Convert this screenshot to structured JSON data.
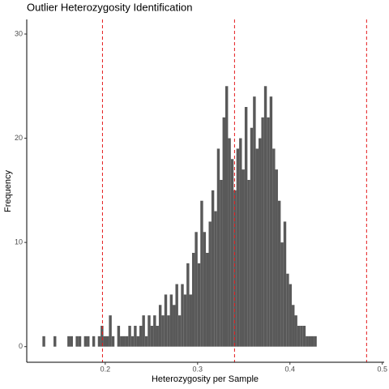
{
  "chart_data": {
    "type": "histogram",
    "title": "Outlier Heterozygosity Identification",
    "x_label": "Heterozygosity per Sample",
    "y_label": "Frequency",
    "bins": [
      0.132,
      0.135,
      0.138,
      0.141,
      0.144,
      0.147,
      0.15,
      0.153,
      0.156,
      0.159,
      0.162,
      0.165,
      0.168,
      0.171,
      0.174,
      0.177,
      0.18,
      0.183,
      0.186,
      0.189,
      0.192,
      0.195,
      0.198,
      0.201,
      0.204,
      0.207,
      0.21,
      0.213,
      0.216,
      0.219,
      0.222,
      0.225,
      0.228,
      0.231,
      0.234,
      0.237,
      0.24,
      0.243,
      0.246,
      0.249,
      0.252,
      0.255,
      0.258,
      0.261,
      0.264,
      0.267,
      0.27,
      0.273,
      0.276,
      0.279,
      0.282,
      0.285,
      0.288,
      0.291,
      0.294,
      0.297,
      0.3,
      0.303,
      0.306,
      0.309,
      0.312,
      0.315,
      0.318,
      0.321,
      0.324,
      0.327,
      0.33,
      0.333,
      0.336,
      0.339,
      0.342,
      0.345,
      0.348,
      0.351,
      0.354,
      0.357,
      0.36,
      0.363,
      0.366,
      0.369,
      0.372,
      0.375,
      0.378,
      0.381,
      0.384,
      0.387,
      0.39,
      0.393,
      0.396,
      0.399,
      0.402,
      0.405,
      0.408,
      0.411,
      0.414,
      0.417,
      0.42,
      0.423,
      0.426,
      0.429,
      0.432
    ],
    "values": [
      1,
      0,
      0,
      0,
      1,
      0,
      0,
      0,
      0,
      1,
      1,
      0,
      1,
      1,
      0,
      1,
      1,
      0,
      1,
      0,
      1,
      2,
      1,
      1,
      3,
      1,
      0,
      2,
      1,
      1,
      1,
      2,
      1,
      2,
      1,
      2,
      3,
      1,
      3,
      2,
      3,
      2,
      4,
      3,
      5,
      3,
      5,
      4,
      6,
      3,
      6,
      5,
      8,
      5,
      9,
      11,
      8,
      14,
      11,
      9,
      12,
      15,
      13,
      19,
      16,
      22,
      25,
      20,
      18,
      15,
      19,
      20,
      17,
      23,
      16,
      21,
      24,
      19,
      20,
      22,
      25,
      22,
      24,
      19,
      17,
      14,
      10,
      12,
      7,
      6,
      4,
      3,
      2,
      2,
      2,
      1,
      1,
      1,
      1,
      0
    ],
    "color": "#595959",
    "vlines": [
      0.197,
      0.34,
      0.483
    ],
    "vline_color": "#e41a1c",
    "xlim": [
      0.115,
      0.502
    ],
    "xticks": [
      0.2,
      0.3,
      0.4,
      0.5
    ],
    "ylim": [
      -1.5,
      31.4
    ],
    "yticks": [
      0,
      10,
      20,
      30
    ],
    "grid": false
  }
}
